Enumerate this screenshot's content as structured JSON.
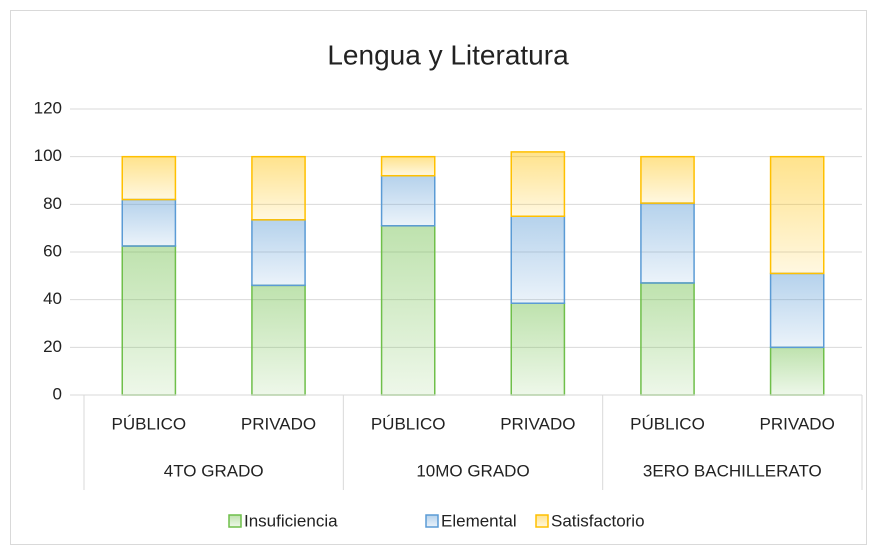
{
  "chart_data": {
    "type": "stacked_bar",
    "title": "Lengua y Literatura",
    "groups": [
      {
        "name": "4TO GRADO",
        "categories": [
          "PÚBLICO",
          "PRIVADO"
        ]
      },
      {
        "name": "10MO GRADO",
        "categories": [
          "PÚBLICO",
          "PRIVADO"
        ]
      },
      {
        "name": "3ERO BACHILLERATO",
        "categories": [
          "PÚBLICO",
          "PRIVADO"
        ]
      }
    ],
    "series": [
      {
        "name": "Insuficiencia",
        "color": "#6fbf4a",
        "values": [
          62.5,
          46,
          71,
          38.5,
          47,
          20
        ]
      },
      {
        "name": "Elemental",
        "color": "#5b9bd5",
        "values": [
          19.5,
          27.5,
          21,
          36.5,
          33.5,
          31
        ]
      },
      {
        "name": "Satisfactorio",
        "color": "#ffc000",
        "values": [
          18,
          26.5,
          8,
          27,
          19.5,
          49
        ]
      }
    ],
    "ylim": [
      0,
      120
    ],
    "yticks": [
      0,
      20,
      40,
      60,
      80,
      100,
      120
    ],
    "grid": true,
    "legend": "bottom"
  }
}
